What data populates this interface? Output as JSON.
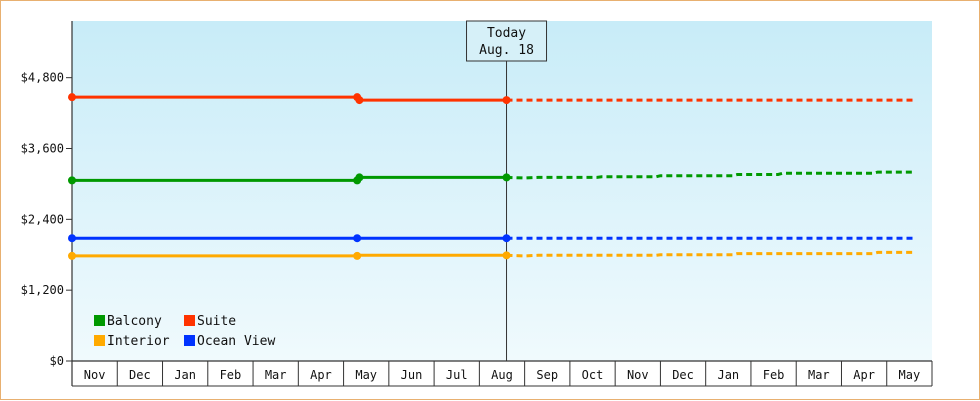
{
  "chart_data": {
    "type": "line",
    "title": "",
    "xlabel": "",
    "ylabel": "",
    "ylim": [
      0,
      5760
    ],
    "y_ticks": [
      0,
      1200,
      2400,
      3600,
      4800
    ],
    "y_tick_labels": [
      "$0",
      "$1,200",
      "$2,400",
      "$3,600",
      "$4,800"
    ],
    "categories": [
      "Nov",
      "Dec",
      "Jan",
      "Feb",
      "Mar",
      "Apr",
      "May",
      "Jun",
      "Jul",
      "Aug",
      "Sep",
      "Oct",
      "Nov",
      "Dec",
      "Jan",
      "Feb",
      "Mar",
      "Apr",
      "May"
    ],
    "grid": false,
    "legend_position": "bottom-left",
    "today_marker": {
      "line1": "Today",
      "line2": "Aug. 18",
      "month_index": 9.6
    },
    "series": [
      {
        "name": "Suite",
        "color": "#ff3300",
        "actual": [
          [
            0,
            4470
          ],
          [
            6.3,
            4470
          ],
          [
            6.35,
            4420
          ],
          [
            9.6,
            4420
          ]
        ],
        "markers": [
          [
            0,
            4470
          ],
          [
            6.3,
            4470
          ],
          [
            6.35,
            4420
          ],
          [
            9.6,
            4420
          ]
        ],
        "forecast": [
          [
            9.6,
            4420
          ],
          [
            18.6,
            4420
          ]
        ]
      },
      {
        "name": "Balcony",
        "color": "#009900",
        "actual": [
          [
            0,
            3060
          ],
          [
            6.3,
            3060
          ],
          [
            6.35,
            3110
          ],
          [
            9.6,
            3110
          ]
        ],
        "markers": [
          [
            0,
            3060
          ],
          [
            6.3,
            3060
          ],
          [
            6.35,
            3110
          ],
          [
            9.6,
            3110
          ]
        ],
        "forecast": [
          [
            9.6,
            3110
          ],
          [
            10.0,
            3100
          ],
          [
            10.3,
            3110
          ],
          [
            11.6,
            3110
          ],
          [
            11.7,
            3120
          ],
          [
            12.9,
            3120
          ],
          [
            13.0,
            3140
          ],
          [
            14.6,
            3140
          ],
          [
            14.7,
            3160
          ],
          [
            15.6,
            3160
          ],
          [
            15.7,
            3180
          ],
          [
            17.7,
            3180
          ],
          [
            17.8,
            3200
          ],
          [
            18.6,
            3200
          ]
        ]
      },
      {
        "name": "Ocean View",
        "color": "#0033ff",
        "actual": [
          [
            0,
            2080
          ],
          [
            6.3,
            2080
          ],
          [
            9.6,
            2080
          ]
        ],
        "markers": [
          [
            0,
            2080
          ],
          [
            6.3,
            2080
          ],
          [
            9.6,
            2080
          ]
        ],
        "forecast": [
          [
            9.6,
            2080
          ],
          [
            18.6,
            2080
          ]
        ]
      },
      {
        "name": "Interior",
        "color": "#ffaa00",
        "actual": [
          [
            0,
            1780
          ],
          [
            6.3,
            1780
          ],
          [
            6.35,
            1790
          ],
          [
            9.6,
            1790
          ]
        ],
        "markers": [
          [
            0,
            1780
          ],
          [
            6.3,
            1780
          ],
          [
            9.6,
            1790
          ]
        ],
        "forecast": [
          [
            9.6,
            1790
          ],
          [
            10.0,
            1780
          ],
          [
            10.3,
            1790
          ],
          [
            12.9,
            1790
          ],
          [
            13.0,
            1800
          ],
          [
            14.6,
            1800
          ],
          [
            14.7,
            1820
          ],
          [
            17.7,
            1820
          ],
          [
            17.8,
            1840
          ],
          [
            18.6,
            1840
          ]
        ]
      }
    ],
    "legend_order": [
      "Balcony",
      "Suite",
      "Interior",
      "Ocean View"
    ]
  },
  "colors": {
    "background_top": "#c8ecf8",
    "background_bottom": "#f0fafd",
    "frame_border": "#e8b070",
    "axis": "#333333"
  }
}
